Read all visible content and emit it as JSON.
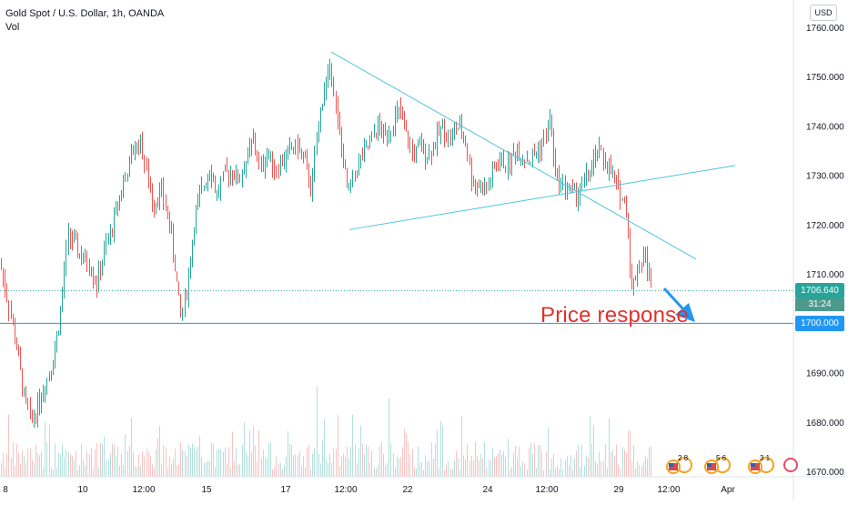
{
  "legend": {
    "title": "Gold Spot / U.S. Dollar, 1h, OANDA",
    "indicator": "Vol"
  },
  "currency": "USD",
  "last_price": {
    "value": "1706.640",
    "countdown": "31:24",
    "color": "#26a69a"
  },
  "level_tag": {
    "value": "1700.000",
    "color": "#2196f3"
  },
  "annotation": "Price response",
  "colors": {
    "up": "#26a69a",
    "down": "#ef5350",
    "trendline": "#4fc3e0",
    "level": "#2196f3",
    "annotation": "#e0312b"
  },
  "chart_data": {
    "type": "candlestick",
    "ylim": [
      1667,
      1764
    ],
    "y_ticks": [
      "1760.000",
      "1750.000",
      "1740.000",
      "1730.000",
      "1720.000",
      "1710.000",
      "1700.000",
      "1690.000",
      "1680.000",
      "1670.000"
    ],
    "x_ticks": [
      "8",
      "10",
      "12:00",
      "15",
      "17",
      "12:00",
      "22",
      "24",
      "12:00",
      "29",
      "12:00",
      "Apr"
    ],
    "anchors": [
      [
        0,
        1712
      ],
      [
        10,
        1703
      ],
      [
        18,
        1695
      ],
      [
        26,
        1685
      ],
      [
        34,
        1680
      ],
      [
        42,
        1684
      ],
      [
        50,
        1688
      ],
      [
        58,
        1693
      ],
      [
        66,
        1702
      ],
      [
        74,
        1718
      ],
      [
        82,
        1716
      ],
      [
        90,
        1713
      ],
      [
        98,
        1712
      ],
      [
        106,
        1708
      ],
      [
        114,
        1714
      ],
      [
        122,
        1719
      ],
      [
        130,
        1725
      ],
      [
        138,
        1730
      ],
      [
        146,
        1735
      ],
      [
        154,
        1737
      ],
      [
        160,
        1731
      ],
      [
        168,
        1724
      ],
      [
        176,
        1727
      ],
      [
        184,
        1722
      ],
      [
        192,
        1712
      ],
      [
        198,
        1701
      ],
      [
        206,
        1708
      ],
      [
        214,
        1722
      ],
      [
        222,
        1727
      ],
      [
        230,
        1732
      ],
      [
        238,
        1726
      ],
      [
        246,
        1730
      ],
      [
        254,
        1731
      ],
      [
        262,
        1729
      ],
      [
        270,
        1733
      ],
      [
        278,
        1737
      ],
      [
        286,
        1731
      ],
      [
        294,
        1735
      ],
      [
        302,
        1731
      ],
      [
        310,
        1733
      ],
      [
        318,
        1735
      ],
      [
        326,
        1736
      ],
      [
        334,
        1733
      ],
      [
        342,
        1727
      ],
      [
        350,
        1741
      ],
      [
        356,
        1748
      ],
      [
        364,
        1752
      ],
      [
        370,
        1741
      ],
      [
        376,
        1734
      ],
      [
        382,
        1726
      ],
      [
        390,
        1731
      ],
      [
        398,
        1734
      ],
      [
        406,
        1736
      ],
      [
        414,
        1740
      ],
      [
        422,
        1738
      ],
      [
        430,
        1740
      ],
      [
        438,
        1743
      ],
      [
        446,
        1738
      ],
      [
        454,
        1734
      ],
      [
        462,
        1736
      ],
      [
        470,
        1734
      ],
      [
        478,
        1737
      ],
      [
        486,
        1740
      ],
      [
        494,
        1737
      ],
      [
        502,
        1740
      ],
      [
        510,
        1738
      ],
      [
        518,
        1729
      ],
      [
        526,
        1728
      ],
      [
        534,
        1727
      ],
      [
        542,
        1731
      ],
      [
        550,
        1733
      ],
      [
        558,
        1732
      ],
      [
        566,
        1735
      ],
      [
        574,
        1734
      ],
      [
        582,
        1733
      ],
      [
        590,
        1735
      ],
      [
        598,
        1737
      ],
      [
        604,
        1742
      ],
      [
        610,
        1730
      ],
      [
        618,
        1728
      ],
      [
        626,
        1727
      ],
      [
        634,
        1726
      ],
      [
        642,
        1729
      ],
      [
        650,
        1731
      ],
      [
        656,
        1735
      ],
      [
        664,
        1733
      ],
      [
        672,
        1730
      ],
      [
        680,
        1727
      ],
      [
        688,
        1723
      ],
      [
        694,
        1707
      ],
      [
        700,
        1711
      ],
      [
        708,
        1714
      ],
      [
        716,
        1707
      ]
    ],
    "volume_range": [
      0.04,
      0.26
    ],
    "volume_spikes": [
      [
        348,
        0.55
      ],
      [
        388,
        0.38
      ],
      [
        428,
        0.48
      ],
      [
        602,
        0.3
      ],
      [
        691,
        0.28
      ]
    ],
    "trendlines": [
      {
        "from": [
          "17 ~20:00",
          1755
        ],
        "to": [
          "29 ~20:00",
          1713
        ]
      },
      {
        "from": [
          "17 ~22:00",
          1719
        ],
        "to": [
          "31 ~14:00",
          1732
        ]
      }
    ],
    "horizontal_lines": [
      {
        "y": 1700,
        "label": "1700.000"
      }
    ],
    "current_price": 1706.64
  }
}
